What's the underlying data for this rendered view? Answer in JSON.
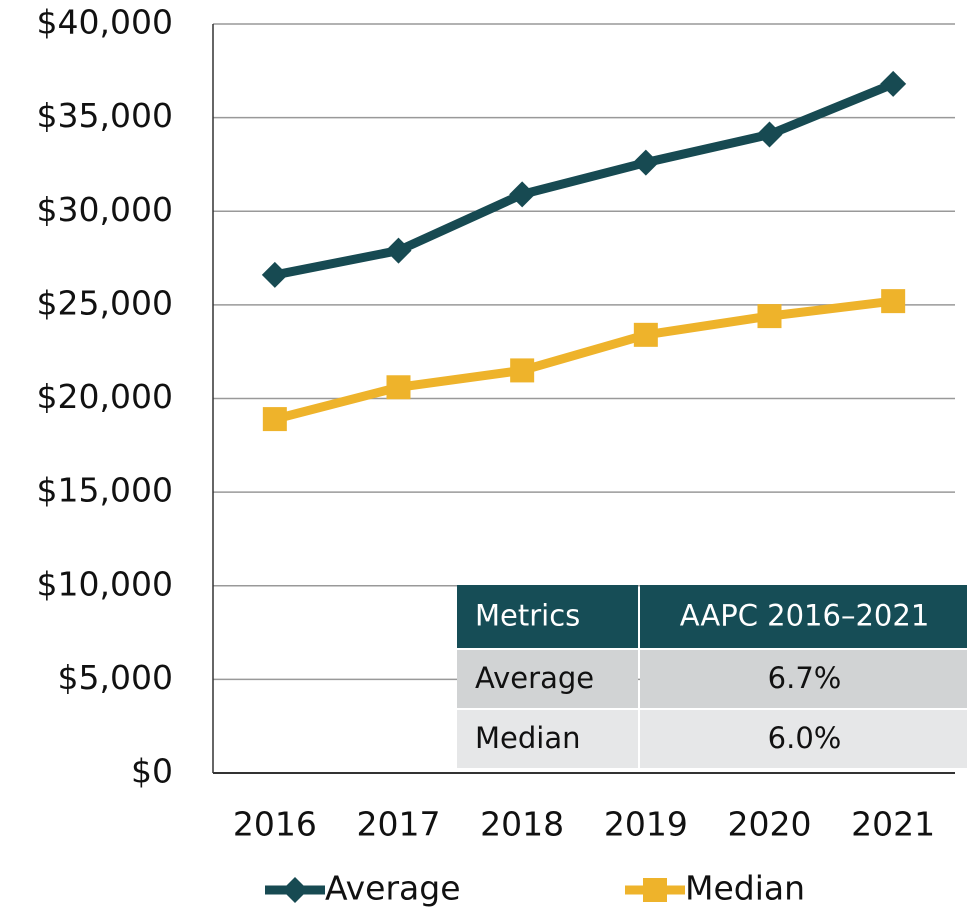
{
  "chart_data": {
    "type": "line",
    "categories": [
      "2016",
      "2017",
      "2018",
      "2019",
      "2020",
      "2021"
    ],
    "series": [
      {
        "name": "Average",
        "color": "#174a52",
        "marker": "diamond",
        "values": [
          26600,
          27900,
          30900,
          32600,
          34100,
          36800
        ]
      },
      {
        "name": "Median",
        "color": "#eeb32b",
        "marker": "square",
        "values": [
          18900,
          20600,
          21500,
          23400,
          24400,
          25200
        ]
      }
    ],
    "ylim": [
      0,
      40000
    ],
    "yticks": [
      {
        "value": 0,
        "label": "$0"
      },
      {
        "value": 5000,
        "label": "$5,000"
      },
      {
        "value": 10000,
        "label": "$10,000"
      },
      {
        "value": 15000,
        "label": "$15,000"
      },
      {
        "value": 20000,
        "label": "$20,000"
      },
      {
        "value": 25000,
        "label": "$25,000"
      },
      {
        "value": 30000,
        "label": "$30,000"
      },
      {
        "value": 35000,
        "label": "$35,000"
      },
      {
        "value": 40000,
        "label": "$40,000"
      }
    ],
    "grid": true,
    "legend": "bottom"
  },
  "table": {
    "columns": [
      "Metrics",
      "AAPC 2016–2021"
    ],
    "rows": [
      [
        "Average",
        "6.7%"
      ],
      [
        "Median",
        "6.0%"
      ]
    ]
  }
}
